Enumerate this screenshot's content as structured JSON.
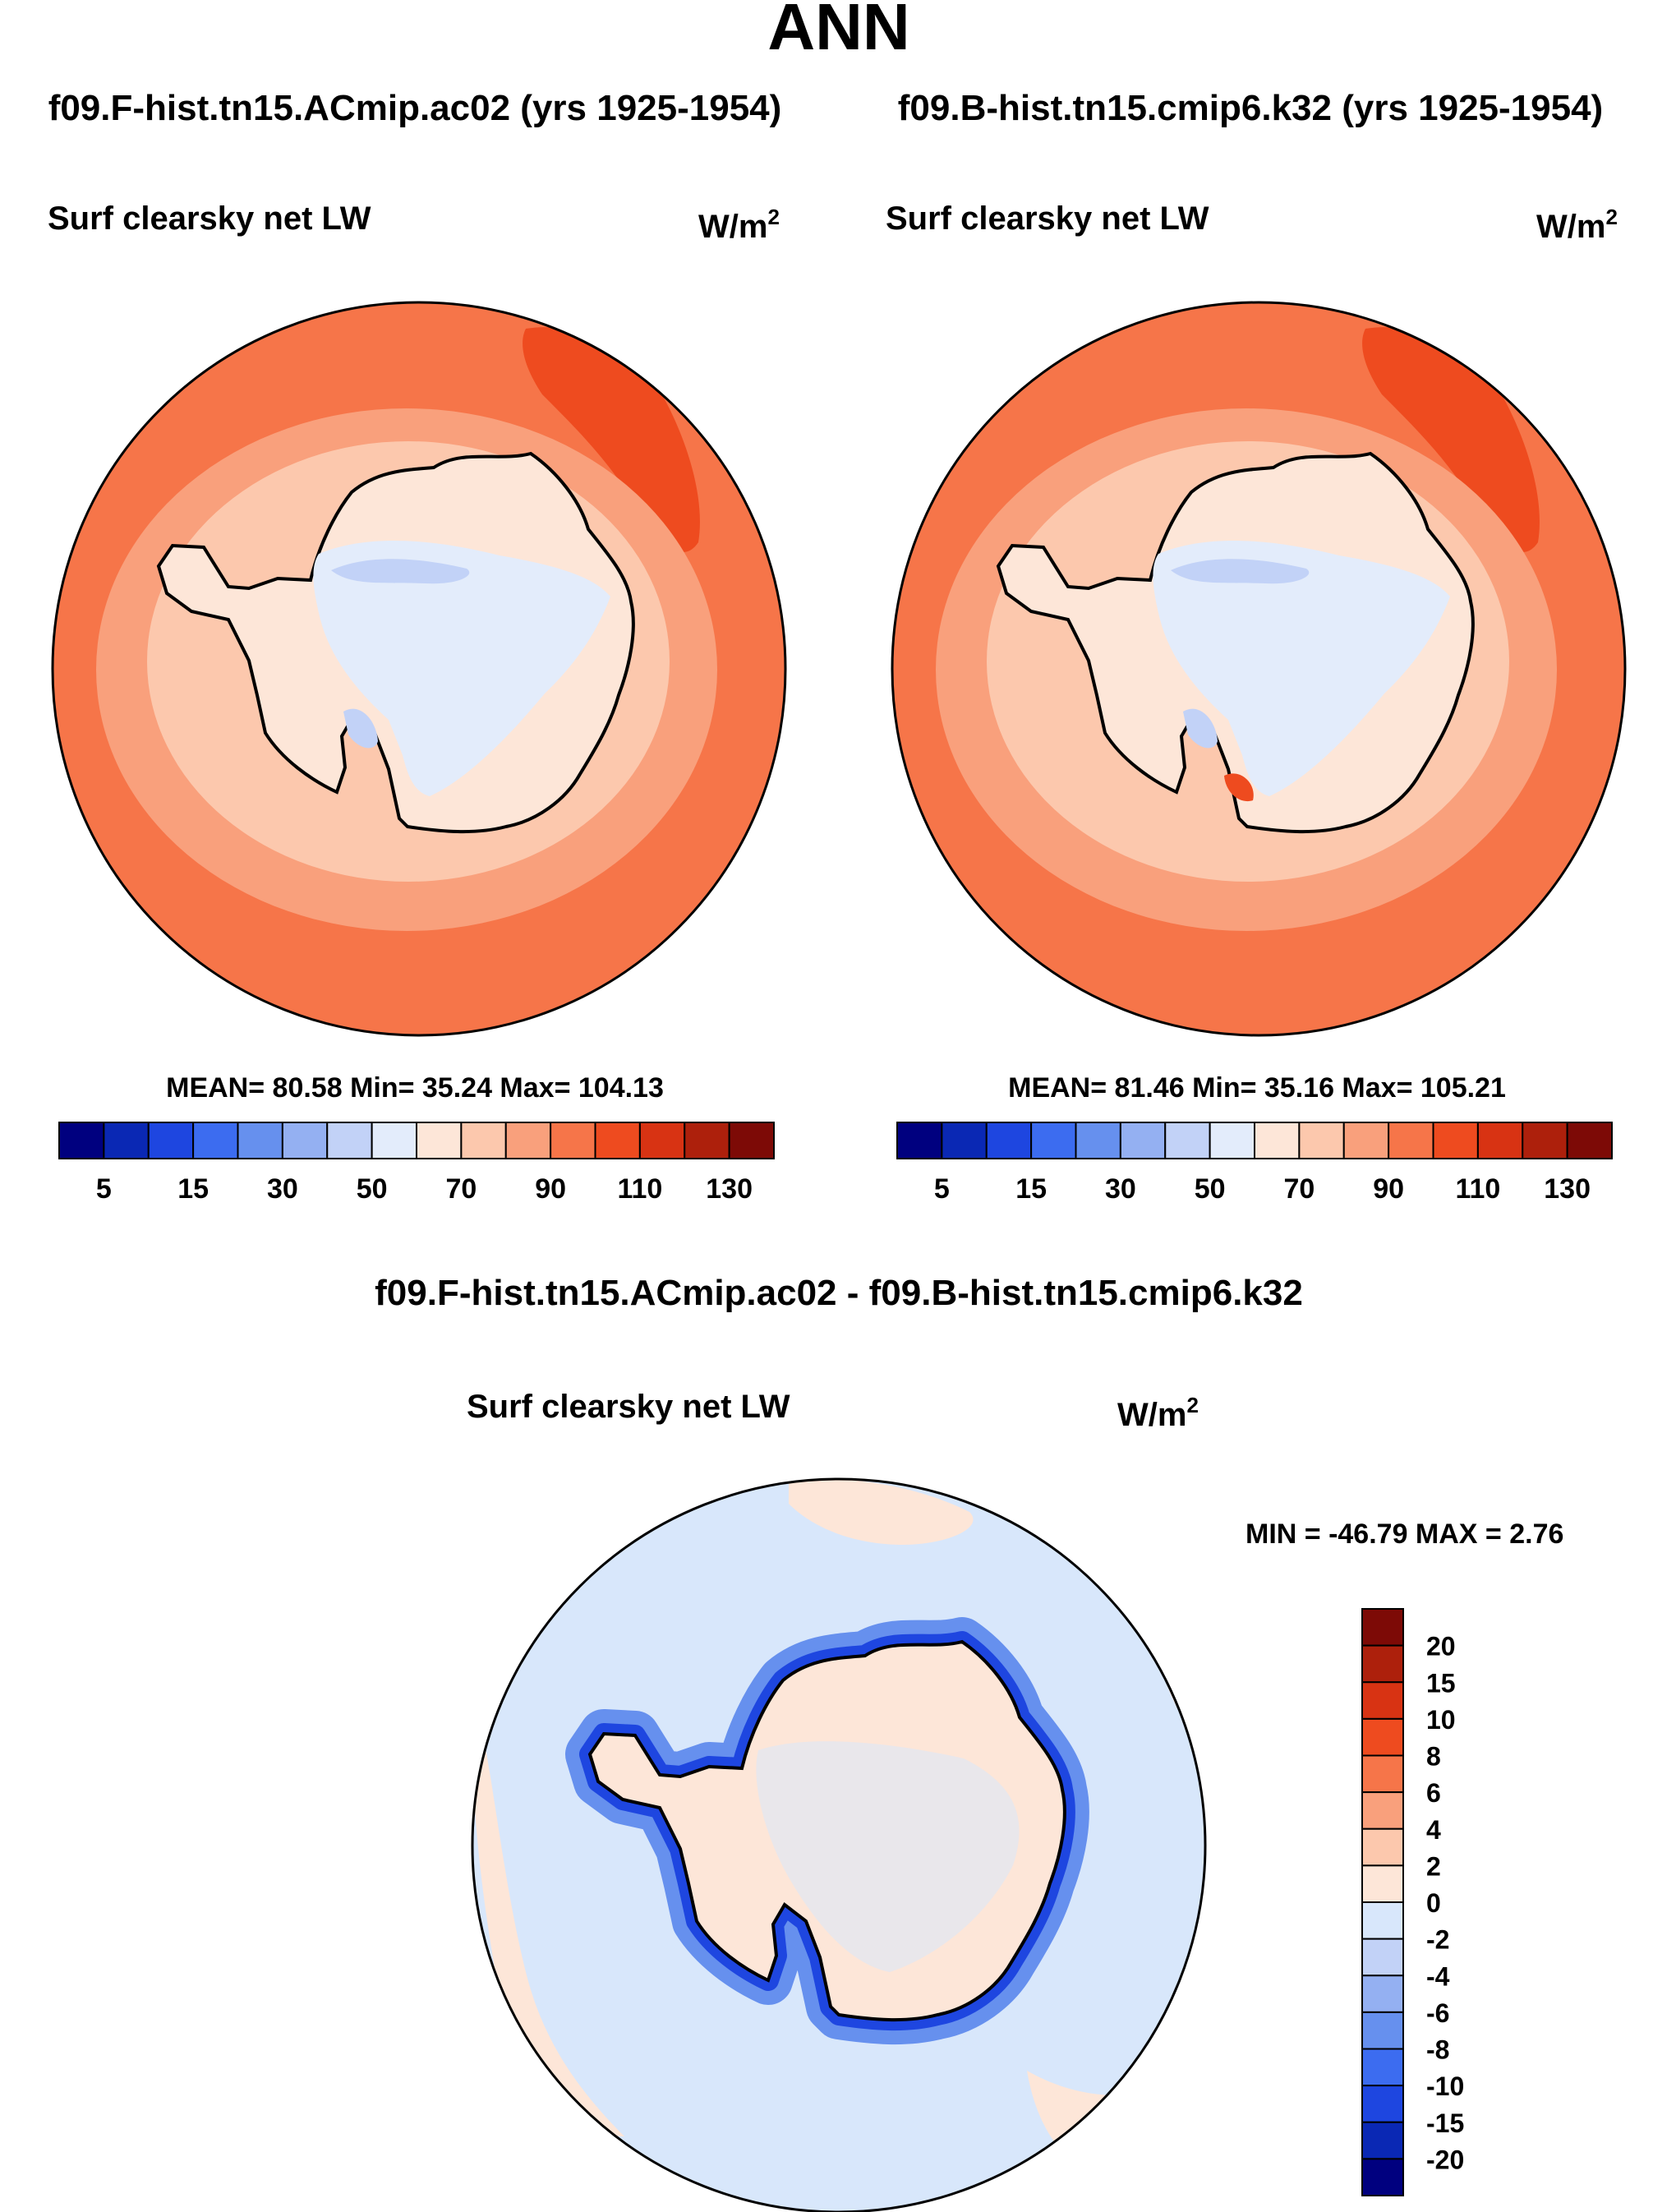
{
  "title": "ANN",
  "colors": {
    "abs_scale": [
      "#00007f",
      "#0a28b4",
      "#1e46e0",
      "#3c6cf0",
      "#6690ee",
      "#94b0f2",
      "#c2d2f7",
      "#e3ecfb",
      "#fde6d8",
      "#fcc8ad",
      "#f9a07c",
      "#f67549",
      "#ee4b1f",
      "#d83313",
      "#ad200c",
      "#7d0a06"
    ],
    "diff_scale": [
      "#00007f",
      "#0a28b4",
      "#1e46e0",
      "#3c6cf0",
      "#6690ee",
      "#94b0f2",
      "#c2d2f7",
      "#d8e7fb",
      "#fde6d8",
      "#fcc8ad",
      "#f9a07c",
      "#f67549",
      "#ee4b1f",
      "#d83313",
      "#ad200c",
      "#7d0a06"
    ]
  },
  "panels": {
    "left": {
      "case_title": "f09.F-hist.tn15.ACmip.ac02 (yrs 1925-1954)",
      "var_title": "Surf clearsky net LW",
      "units": "W/m",
      "units_sup": "2",
      "stats": "MEAN=  80.58  Min=  35.24  Max= 104.13"
    },
    "right": {
      "case_title": "f09.B-hist.tn15.cmip6.k32 (yrs 1925-1954)",
      "var_title": "Surf clearsky net LW",
      "units": "W/m",
      "units_sup": "2",
      "stats": "MEAN=  81.46  Min=  35.16  Max= 105.21"
    },
    "diff": {
      "case_title": "f09.F-hist.tn15.ACmip.ac02 - f09.B-hist.tn15.cmip6.k32",
      "var_title": "Surf clearsky net LW",
      "units": "W/m",
      "units_sup": "2",
      "stats": "MIN = -46.79 MAX =   2.76"
    }
  },
  "chart_data": [
    {
      "type": "heatmap",
      "title": "Surf clearsky net LW",
      "case": "f09.F-hist.tn15.ACmip.ac02 (yrs 1925-1954)",
      "units": "W/m2",
      "projection": "south polar stereographic",
      "mean": 80.58,
      "min": 35.24,
      "max": 104.13,
      "colorbar_levels": [
        5,
        10,
        15,
        20,
        30,
        40,
        50,
        60,
        70,
        80,
        90,
        100,
        110,
        120,
        130
      ],
      "colorbar_tick_labels": [
        "5",
        "15",
        "30",
        "50",
        "70",
        "90",
        "110",
        "130"
      ]
    },
    {
      "type": "heatmap",
      "title": "Surf clearsky net LW",
      "case": "f09.B-hist.tn15.cmip6.k32 (yrs 1925-1954)",
      "units": "W/m2",
      "projection": "south polar stereographic",
      "mean": 81.46,
      "min": 35.16,
      "max": 105.21,
      "colorbar_levels": [
        5,
        10,
        15,
        20,
        30,
        40,
        50,
        60,
        70,
        80,
        90,
        100,
        110,
        120,
        130
      ],
      "colorbar_tick_labels": [
        "5",
        "15",
        "30",
        "50",
        "70",
        "90",
        "110",
        "130"
      ]
    },
    {
      "type": "heatmap",
      "title": "Surf clearsky net LW",
      "case": "f09.F-hist.tn15.ACmip.ac02 - f09.B-hist.tn15.cmip6.k32",
      "units": "W/m2",
      "projection": "south polar stereographic",
      "min": -46.79,
      "max": 2.76,
      "colorbar_levels": [
        -20,
        -15,
        -10,
        -8,
        -6,
        -4,
        -2,
        0,
        2,
        4,
        6,
        8,
        10,
        15,
        20
      ],
      "colorbar_tick_labels": [
        "20",
        "15",
        "10",
        "8",
        "6",
        "4",
        "2",
        "0",
        "-2",
        "-4",
        "-6",
        "-8",
        "-10",
        "-15",
        "-20"
      ]
    }
  ]
}
